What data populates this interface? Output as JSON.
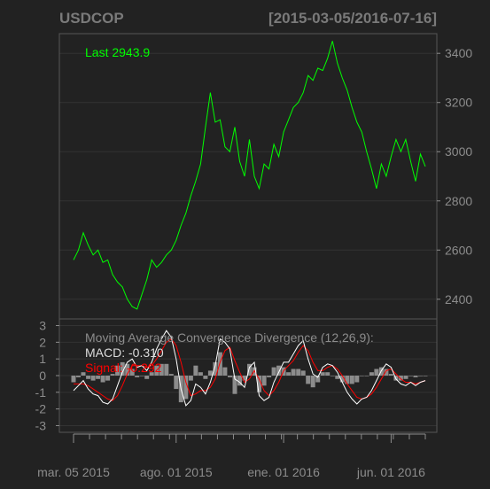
{
  "chart_data": {
    "type": "line",
    "title": "USDCOP",
    "date_range": "[2015-03-05/2016-07-16]",
    "colors": {
      "background": "#222222",
      "price_line": "#00ff00",
      "macd_line": "#ffffff",
      "signal_line": "#ff0000",
      "histogram": "#8c8c8c",
      "text": "#8c8c8c",
      "grid": "#333333",
      "frame": "#555555"
    },
    "price_panel": {
      "last_label": "Last 2943.9",
      "y_ticks": [
        2400,
        2600,
        2800,
        3000,
        3200,
        3400
      ],
      "ylim": [
        2320,
        3480
      ],
      "series": {
        "name": "USDCOP",
        "t": [
          0,
          1,
          2,
          3,
          4,
          5,
          6,
          7,
          8,
          9,
          10,
          11,
          12,
          13,
          14,
          15,
          16,
          17,
          18,
          19,
          20,
          21,
          22,
          23,
          24,
          25,
          26,
          27,
          28,
          29,
          30,
          31,
          32,
          33,
          34,
          35,
          36,
          37,
          38,
          39,
          40,
          41,
          42,
          43,
          44,
          45,
          46,
          47,
          48,
          49,
          50,
          51,
          52,
          53,
          54,
          55,
          56,
          57,
          58,
          59,
          60,
          61,
          62,
          63,
          64,
          65,
          66,
          67,
          68,
          69,
          70,
          71,
          72
        ],
        "values": [
          2560,
          2600,
          2670,
          2620,
          2580,
          2600,
          2550,
          2560,
          2500,
          2470,
          2450,
          2400,
          2370,
          2360,
          2420,
          2480,
          2560,
          2530,
          2550,
          2580,
          2600,
          2640,
          2700,
          2750,
          2820,
          2880,
          2950,
          3100,
          3240,
          3120,
          3130,
          3020,
          3000,
          3100,
          2960,
          2900,
          3050,
          2900,
          2850,
          2950,
          2930,
          3030,
          2980,
          3080,
          3130,
          3180,
          3200,
          3240,
          3310,
          3290,
          3340,
          3330,
          3380,
          3450,
          3360,
          3300,
          3250,
          3180,
          3120,
          3080,
          3000,
          2930,
          2850,
          2950,
          2900,
          2980,
          3050,
          3000,
          3050,
          2960,
          2880,
          2990,
          2940
        ]
      }
    },
    "macd_panel": {
      "label": "Moving Average Convergence Divergence (12,26,9):",
      "macd_label": "MACD: -0.310",
      "signal_label": "Signal: -0.292",
      "y_ticks": [
        -3,
        -2,
        -1,
        0,
        1,
        2,
        3
      ],
      "ylim": [
        -3.4,
        3.4
      ],
      "macd": {
        "name": "MACD",
        "t": [
          0,
          1,
          2,
          3,
          4,
          5,
          6,
          7,
          8,
          9,
          10,
          11,
          12,
          13,
          14,
          15,
          16,
          17,
          18,
          19,
          20,
          21,
          22,
          23,
          24,
          25,
          26,
          27,
          28,
          29,
          30,
          31,
          32,
          33,
          34,
          35,
          36,
          37,
          38,
          39,
          40,
          41,
          42,
          43,
          44,
          45,
          46,
          47,
          48,
          49,
          50,
          51,
          52,
          53,
          54,
          55,
          56,
          57,
          58,
          59,
          60,
          61,
          62,
          63,
          64,
          65,
          66,
          67,
          68,
          69,
          70,
          71,
          72
        ],
        "values": [
          -0.9,
          -0.6,
          -0.3,
          -0.8,
          -1.1,
          -1.2,
          -1.6,
          -1.7,
          -1.4,
          -0.6,
          0.2,
          0.8,
          1.0,
          0.5,
          0.6,
          0.3,
          0.8,
          1.6,
          2.2,
          2.7,
          2.3,
          1.0,
          -0.8,
          -1.8,
          -1.5,
          -0.5,
          -0.7,
          -1.1,
          -0.4,
          0.6,
          2.2,
          2.0,
          1.6,
          -0.2,
          -0.4,
          -0.7,
          0.5,
          0.8,
          -1.2,
          -1.5,
          -1.3,
          -0.4,
          0.2,
          0.8,
          0.8,
          1.3,
          1.8,
          2.1,
          1.0,
          0.1,
          -0.1,
          0.5,
          0.7,
          0.6,
          0.2,
          -0.4,
          -1.0,
          -1.4,
          -1.7,
          -1.4,
          -1.3,
          -0.9,
          -0.3,
          0.3,
          0.7,
          0.5,
          -0.2,
          -0.5,
          -0.6,
          -0.4,
          -0.6,
          -0.4,
          -0.3
        ]
      },
      "signal": {
        "name": "Signal",
        "t": [
          0,
          1,
          2,
          3,
          4,
          5,
          6,
          7,
          8,
          9,
          10,
          11,
          12,
          13,
          14,
          15,
          16,
          17,
          18,
          19,
          20,
          21,
          22,
          23,
          24,
          25,
          26,
          27,
          28,
          29,
          30,
          31,
          32,
          33,
          34,
          35,
          36,
          37,
          38,
          39,
          40,
          41,
          42,
          43,
          44,
          45,
          46,
          47,
          48,
          49,
          50,
          51,
          52,
          53,
          54,
          55,
          56,
          57,
          58,
          59,
          60,
          61,
          62,
          63,
          64,
          65,
          66,
          67,
          68,
          69,
          70,
          71,
          72
        ],
        "values": [
          -0.5,
          -0.5,
          -0.5,
          -0.6,
          -0.8,
          -1.0,
          -1.2,
          -1.4,
          -1.5,
          -1.2,
          -0.6,
          0.1,
          0.6,
          0.6,
          0.6,
          0.5,
          0.6,
          1.0,
          1.5,
          2.0,
          2.2,
          1.8,
          0.8,
          -0.4,
          -1.2,
          -1.1,
          -0.9,
          -0.9,
          -0.7,
          -0.2,
          0.8,
          1.5,
          1.7,
          0.9,
          0.2,
          -0.4,
          -0.2,
          0.3,
          -0.2,
          -0.9,
          -1.2,
          -0.9,
          -0.4,
          0.3,
          0.6,
          0.9,
          1.4,
          1.8,
          1.5,
          0.8,
          0.3,
          0.3,
          0.5,
          0.6,
          0.4,
          0.0,
          -0.5,
          -0.9,
          -1.3,
          -1.4,
          -1.3,
          -1.1,
          -0.7,
          -0.2,
          0.3,
          0.4,
          0.1,
          -0.2,
          -0.4,
          -0.4,
          -0.5,
          -0.4,
          -0.3
        ]
      }
    },
    "x_axis": {
      "ticks": [
        {
          "label": "mar. 05 2015",
          "t": 0
        },
        {
          "label": "ago. 01 2015",
          "t": 21
        },
        {
          "label": "ene. 01 2016",
          "t": 43
        },
        {
          "label": "jun. 01 2016",
          "t": 65
        }
      ],
      "minor_tick_count": 22
    }
  }
}
